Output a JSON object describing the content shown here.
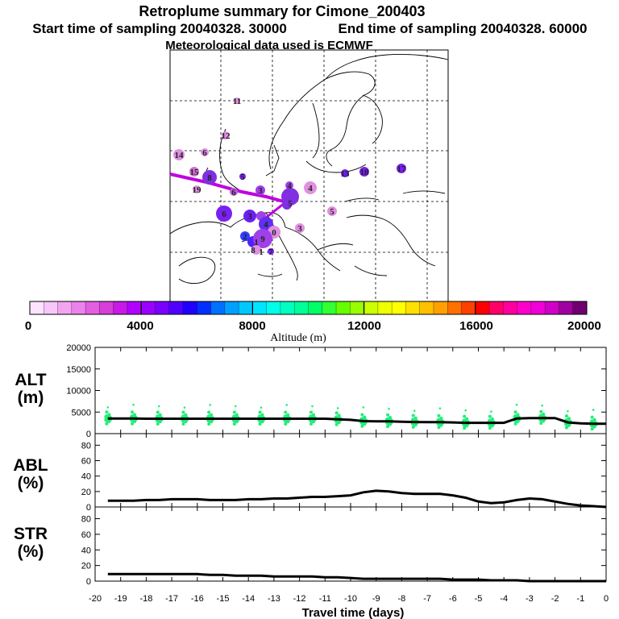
{
  "header": {
    "title": "Retroplume summary for Cimone_200403",
    "start": "Start time of sampling 20040328. 30000",
    "end": "End time of sampling 20040328. 60000",
    "met": "Meteorological data used is ECMWF"
  },
  "colorbar": {
    "label": "Altitude (m)",
    "tick_labels": [
      "0",
      "4000",
      "8000",
      "12000",
      "16000",
      "20000"
    ],
    "colors": [
      "#fde3fd",
      "#f8c6f8",
      "#f1a5f1",
      "#eb83eb",
      "#e25fe2",
      "#d83ed8",
      "#c719e8",
      "#b200ff",
      "#9a00ff",
      "#7a00ff",
      "#5000ff",
      "#2000ff",
      "#0030ff",
      "#0070ff",
      "#00a0ff",
      "#00c8ff",
      "#00e4ff",
      "#00ffe8",
      "#00ffc0",
      "#00ff99",
      "#00ff66",
      "#33ff33",
      "#66ff00",
      "#99ff00",
      "#ccff00",
      "#eeff00",
      "#ffff00",
      "#ffe000",
      "#ffc000",
      "#ffa000",
      "#ff7000",
      "#ff4000",
      "#ff0000",
      "#ff0066",
      "#ff00a0",
      "#ff00cc",
      "#f000d8",
      "#d000c8",
      "#a000a0",
      "#700070"
    ]
  },
  "map_labels": [
    "11",
    "12",
    "14",
    "6",
    "15",
    "8",
    "5",
    "19",
    "6",
    "3",
    "4",
    "4",
    "6",
    "5",
    "3",
    "5",
    "4",
    "3",
    "13",
    "18",
    "17",
    "2",
    "1",
    "0",
    "9",
    "8",
    "1",
    "7"
  ],
  "chart_data": [
    {
      "type": "line",
      "title": "",
      "ylabel": "ALT (m)",
      "panel_label": [
        "ALT",
        "(m)"
      ],
      "ylim": [
        0,
        20000
      ],
      "yticks": [
        "0",
        "5000",
        "10000",
        "15000",
        "20000"
      ],
      "x": [
        -19.5,
        -19,
        -18.5,
        -18,
        -17.5,
        -17,
        -16.5,
        -16,
        -15.5,
        -15,
        -14.5,
        -14,
        -13.5,
        -13,
        -12.5,
        -12,
        -11.5,
        -11,
        -10.5,
        -10,
        -9.5,
        -9,
        -8.5,
        -8,
        -7.5,
        -7,
        -6.5,
        -6,
        -5.5,
        -5,
        -4.5,
        -4,
        -3.5,
        -3,
        -2.5,
        -2,
        -1.5,
        -1,
        -0.5,
        0
      ],
      "series": [
        {
          "name": "median altitude",
          "values": [
            3500,
            3500,
            3500,
            3450,
            3450,
            3450,
            3450,
            3450,
            3450,
            3450,
            3450,
            3450,
            3450,
            3450,
            3450,
            3450,
            3450,
            3450,
            3300,
            3200,
            2900,
            2850,
            2850,
            2750,
            2700,
            2650,
            2650,
            2600,
            2500,
            2500,
            2500,
            2500,
            3500,
            3600,
            3600,
            3600,
            2600,
            2400,
            2300,
            2300
          ]
        }
      ]
    },
    {
      "type": "line",
      "title": "",
      "ylabel": "ABL (%)",
      "panel_label": [
        "ABL",
        "(%)"
      ],
      "ylim": [
        0,
        95
      ],
      "yticks": [
        "0",
        "20",
        "40",
        "60",
        "80"
      ],
      "x": [
        -19.5,
        -19,
        -18.5,
        -18,
        -17.5,
        -17,
        -16.5,
        -16,
        -15.5,
        -15,
        -14.5,
        -14,
        -13.5,
        -13,
        -12.5,
        -12,
        -11.5,
        -11,
        -10.5,
        -10,
        -9.5,
        -9,
        -8.5,
        -8,
        -7.5,
        -7,
        -6.5,
        -6,
        -5.5,
        -5,
        -4.5,
        -4,
        -3.5,
        -3,
        -2.5,
        -2,
        -1.5,
        -1,
        -0.5,
        0
      ],
      "series": [
        {
          "name": "fraction in boundary layer",
          "values": [
            8,
            8,
            8,
            9,
            9,
            10,
            10,
            10,
            9,
            9,
            9,
            10,
            10,
            11,
            11,
            12,
            13,
            13,
            14,
            15,
            19,
            21,
            20,
            18,
            17,
            17,
            17,
            15,
            12,
            7,
            5,
            6,
            9,
            11,
            10,
            7,
            4,
            2,
            1,
            0
          ]
        }
      ]
    },
    {
      "type": "line",
      "title": "",
      "ylabel": "STR (%)",
      "panel_label": [
        "STR",
        "(%)"
      ],
      "ylim": [
        0,
        95
      ],
      "yticks": [
        "0",
        "20",
        "40",
        "60",
        "80"
      ],
      "xlabel": "Travel time (days)",
      "xticks": [
        "-20",
        "-19",
        "-18",
        "-17",
        "-16",
        "-15",
        "-14",
        "-13",
        "-12",
        "-11",
        "-10",
        "-9",
        "-8",
        "-7",
        "-6",
        "-5",
        "-4",
        "-3",
        "-2",
        "-1",
        "0"
      ],
      "x": [
        -19.5,
        -19,
        -18.5,
        -18,
        -17.5,
        -17,
        -16.5,
        -16,
        -15.5,
        -15,
        -14.5,
        -14,
        -13.5,
        -13,
        -12.5,
        -12,
        -11.5,
        -11,
        -10.5,
        -10,
        -9.5,
        -9,
        -8.5,
        -8,
        -7.5,
        -7,
        -6.5,
        -6,
        -5.5,
        -5,
        -4.5,
        -4,
        -3.5,
        -3,
        -2.5,
        -2,
        -1.5,
        -1,
        -0.5,
        0
      ],
      "series": [
        {
          "name": "fraction in stratosphere",
          "values": [
            9,
            9,
            9,
            9,
            9,
            9,
            9,
            9,
            8,
            8,
            7,
            7,
            7,
            6,
            6,
            6,
            6,
            5,
            5,
            4,
            3,
            3,
            3,
            3,
            3,
            3,
            3,
            2,
            2,
            2,
            1,
            1,
            1,
            0,
            0,
            0,
            0,
            0,
            0,
            0
          ]
        }
      ]
    }
  ]
}
